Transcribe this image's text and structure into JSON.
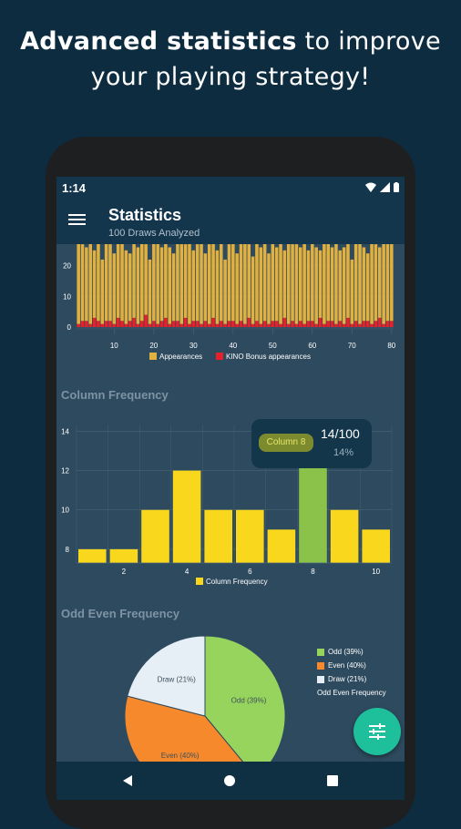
{
  "promo": {
    "bold": "Advanced statistics",
    "rest_line1": " to improve",
    "line2": "your playing strategy!"
  },
  "status": {
    "time": "1:14"
  },
  "appbar": {
    "title": "Statistics",
    "subtitle": "100 Draws Analyzed"
  },
  "sections": {
    "column_frequency": "Column Frequency",
    "odd_even": "Odd Even Frequency"
  },
  "colors": {
    "appearances": "#e0b040",
    "bonus": "#e8202a",
    "column_bar": "#f9d71c",
    "column_highlight": "#8bc34a",
    "odd": "#96d45e",
    "even": "#f5892b",
    "draw": "#e6eef6",
    "fab": "#1ec09c"
  },
  "tooltip": {
    "label": "Column 8",
    "value": "14/100",
    "percent": "14%"
  },
  "chart_data": [
    {
      "type": "bar",
      "x": [
        1,
        2,
        3,
        4,
        5,
        6,
        7,
        8,
        9,
        10,
        11,
        12,
        13,
        14,
        15,
        16,
        17,
        18,
        19,
        20,
        21,
        22,
        23,
        24,
        25,
        26,
        27,
        28,
        29,
        30,
        31,
        32,
        33,
        34,
        35,
        36,
        37,
        38,
        39,
        40,
        41,
        42,
        43,
        44,
        45,
        46,
        47,
        48,
        49,
        50,
        51,
        52,
        53,
        54,
        55,
        56,
        57,
        58,
        59,
        60,
        61,
        62,
        63,
        64,
        65,
        66,
        67,
        68,
        69,
        70,
        71,
        72,
        73,
        74,
        75,
        76,
        77,
        78,
        79,
        80
      ],
      "series": [
        {
          "name": "Appearances",
          "values": [
            27,
            25,
            24,
            28,
            22,
            27,
            21,
            28,
            25,
            23,
            27,
            26,
            24,
            22,
            28,
            25,
            27,
            23,
            21,
            26,
            28,
            24,
            27,
            25,
            22,
            28,
            26,
            24,
            27,
            23,
            25,
            28,
            22,
            26,
            27,
            24,
            28,
            21,
            25,
            27,
            23,
            26,
            28,
            24,
            22,
            27,
            25,
            28,
            23,
            26,
            24,
            27,
            22,
            28,
            25,
            26,
            24,
            27,
            23,
            28,
            25,
            22,
            27,
            26,
            24,
            28,
            23,
            25,
            27,
            21,
            26,
            28,
            24,
            22,
            27,
            25,
            23,
            28,
            26,
            27
          ]
        },
        {
          "name": "KINO Bonus appearances",
          "values": [
            1,
            2,
            2,
            1,
            3,
            2,
            1,
            2,
            2,
            1,
            3,
            2,
            1,
            2,
            3,
            1,
            2,
            4,
            1,
            2,
            1,
            2,
            3,
            1,
            2,
            2,
            1,
            3,
            1,
            2,
            2,
            1,
            2,
            1,
            3,
            1,
            2,
            1,
            2,
            2,
            1,
            2,
            1,
            3,
            1,
            2,
            1,
            2,
            1,
            2,
            2,
            1,
            3,
            1,
            2,
            1,
            2,
            1,
            2,
            2,
            1,
            3,
            1,
            2,
            2,
            1,
            2,
            1,
            3,
            1,
            2,
            1,
            2,
            2,
            1,
            2,
            3,
            1,
            2,
            2
          ]
        }
      ],
      "xticks": [
        10,
        20,
        30,
        40,
        50,
        60,
        70,
        80
      ],
      "yticks": [
        0,
        10,
        20
      ],
      "ylim": [
        0,
        30
      ],
      "legend": [
        "Appearances",
        "KINO Bonus appearances"
      ]
    },
    {
      "type": "bar",
      "title": "Column Frequency",
      "categories": [
        "1",
        "2",
        "3",
        "4",
        "5",
        "6",
        "7",
        "8",
        "9",
        "10"
      ],
      "series": [
        {
          "name": "Column Frequency",
          "values": [
            8,
            8,
            10,
            12,
            10,
            10,
            9,
            14,
            10,
            9
          ]
        }
      ],
      "xticks": [
        "2",
        "4",
        "6",
        "8",
        "10"
      ],
      "yticks": [
        "8",
        "10",
        "12",
        "14"
      ],
      "ylim": [
        7.3,
        14.9
      ],
      "highlight": "8",
      "legend": [
        "Column Frequency"
      ]
    },
    {
      "type": "pie",
      "title": "Odd Even Frequency",
      "slices": [
        {
          "label": "Odd (39%)",
          "value": 39
        },
        {
          "label": "Even (40%)",
          "value": 40
        },
        {
          "label": "Draw (21%)",
          "value": 21
        }
      ],
      "legend_title": "Odd Even Frequency"
    }
  ]
}
